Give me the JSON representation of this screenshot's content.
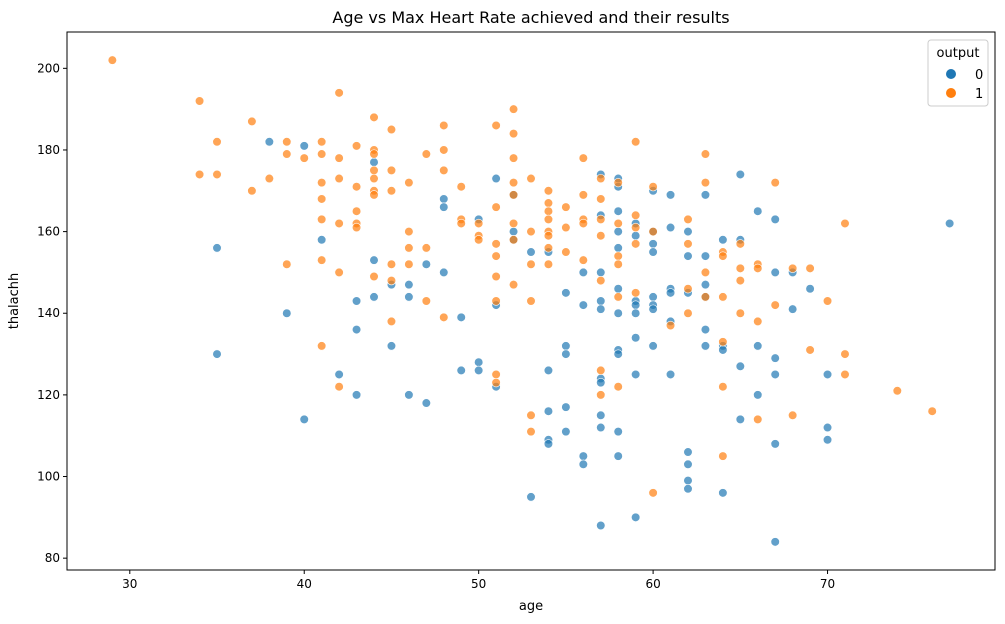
{
  "chart_data": {
    "type": "scatter",
    "title": "Age vs Max Heart Rate achieved and their results",
    "xlabel": "age",
    "ylabel": "thalachh",
    "xlim": [
      26.4,
      79.6
    ],
    "ylim": [
      77.1,
      208.9
    ],
    "xticks": [
      30,
      40,
      50,
      60,
      70
    ],
    "yticks": [
      80,
      100,
      120,
      140,
      160,
      180,
      200
    ],
    "grid": false,
    "legend": {
      "title": "output",
      "position": "top-right"
    },
    "colors": {
      "0": "#1f77b4",
      "1": "#ff7f0e"
    },
    "series": [
      {
        "name": "0",
        "points": [
          [
            35,
            156
          ],
          [
            35,
            130
          ],
          [
            38,
            182
          ],
          [
            39,
            140
          ],
          [
            40,
            181
          ],
          [
            40,
            114
          ],
          [
            41,
            158
          ],
          [
            42,
            125
          ],
          [
            43,
            143
          ],
          [
            43,
            136
          ],
          [
            43,
            120
          ],
          [
            44,
            177
          ],
          [
            44,
            153
          ],
          [
            44,
            144
          ],
          [
            45,
            147
          ],
          [
            45,
            132
          ],
          [
            46,
            147
          ],
          [
            46,
            144
          ],
          [
            46,
            120
          ],
          [
            47,
            152
          ],
          [
            47,
            118
          ],
          [
            48,
            168
          ],
          [
            48,
            166
          ],
          [
            48,
            150
          ],
          [
            49,
            139
          ],
          [
            49,
            126
          ],
          [
            50,
            163
          ],
          [
            50,
            128
          ],
          [
            50,
            126
          ],
          [
            51,
            142
          ],
          [
            51,
            122
          ],
          [
            51,
            173
          ],
          [
            52,
            169
          ],
          [
            52,
            160
          ],
          [
            52,
            158
          ],
          [
            53,
            155
          ],
          [
            53,
            95
          ],
          [
            54,
            155
          ],
          [
            54,
            126
          ],
          [
            54,
            116
          ],
          [
            54,
            109
          ],
          [
            54,
            108
          ],
          [
            55,
            145
          ],
          [
            55,
            132
          ],
          [
            55,
            130
          ],
          [
            55,
            117
          ],
          [
            55,
            111
          ],
          [
            56,
            150
          ],
          [
            56,
            142
          ],
          [
            56,
            105
          ],
          [
            56,
            103
          ],
          [
            57,
            174
          ],
          [
            57,
            164
          ],
          [
            57,
            150
          ],
          [
            57,
            143
          ],
          [
            57,
            141
          ],
          [
            57,
            124
          ],
          [
            57,
            123
          ],
          [
            57,
            115
          ],
          [
            57,
            112
          ],
          [
            57,
            88
          ],
          [
            58,
            173
          ],
          [
            58,
            171
          ],
          [
            58,
            165
          ],
          [
            58,
            160
          ],
          [
            58,
            156
          ],
          [
            58,
            146
          ],
          [
            58,
            140
          ],
          [
            58,
            131
          ],
          [
            58,
            130
          ],
          [
            58,
            111
          ],
          [
            58,
            105
          ],
          [
            59,
            162
          ],
          [
            59,
            159
          ],
          [
            59,
            143
          ],
          [
            59,
            142
          ],
          [
            59,
            140
          ],
          [
            59,
            134
          ],
          [
            59,
            125
          ],
          [
            59,
            90
          ],
          [
            60,
            170
          ],
          [
            60,
            160
          ],
          [
            60,
            157
          ],
          [
            60,
            155
          ],
          [
            60,
            144
          ],
          [
            60,
            142
          ],
          [
            60,
            141
          ],
          [
            60,
            132
          ],
          [
            61,
            169
          ],
          [
            61,
            161
          ],
          [
            61,
            146
          ],
          [
            61,
            145
          ],
          [
            61,
            138
          ],
          [
            61,
            125
          ],
          [
            62,
            160
          ],
          [
            62,
            154
          ],
          [
            62,
            145
          ],
          [
            62,
            106
          ],
          [
            62,
            103
          ],
          [
            62,
            99
          ],
          [
            62,
            97
          ],
          [
            63,
            169
          ],
          [
            63,
            154
          ],
          [
            63,
            147
          ],
          [
            63,
            144
          ],
          [
            63,
            136
          ],
          [
            63,
            132
          ],
          [
            64,
            158
          ],
          [
            64,
            132
          ],
          [
            64,
            131
          ],
          [
            64,
            96
          ],
          [
            65,
            174
          ],
          [
            65,
            158
          ],
          [
            65,
            127
          ],
          [
            65,
            114
          ],
          [
            66,
            165
          ],
          [
            66,
            132
          ],
          [
            66,
            120
          ],
          [
            67,
            163
          ],
          [
            67,
            150
          ],
          [
            67,
            129
          ],
          [
            67,
            125
          ],
          [
            67,
            108
          ],
          [
            67,
            84
          ],
          [
            68,
            150
          ],
          [
            68,
            141
          ],
          [
            69,
            146
          ],
          [
            70,
            125
          ],
          [
            70,
            112
          ],
          [
            70,
            109
          ],
          [
            77,
            162
          ]
        ]
      },
      {
        "name": "1",
        "points": [
          [
            29,
            202
          ],
          [
            34,
            192
          ],
          [
            34,
            174
          ],
          [
            35,
            182
          ],
          [
            35,
            174
          ],
          [
            37,
            187
          ],
          [
            37,
            170
          ],
          [
            38,
            173
          ],
          [
            39,
            182
          ],
          [
            39,
            179
          ],
          [
            39,
            152
          ],
          [
            40,
            178
          ],
          [
            41,
            182
          ],
          [
            41,
            179
          ],
          [
            41,
            172
          ],
          [
            41,
            168
          ],
          [
            41,
            163
          ],
          [
            41,
            153
          ],
          [
            41,
            132
          ],
          [
            42,
            194
          ],
          [
            42,
            178
          ],
          [
            42,
            173
          ],
          [
            42,
            162
          ],
          [
            42,
            150
          ],
          [
            42,
            122
          ],
          [
            43,
            181
          ],
          [
            43,
            171
          ],
          [
            43,
            165
          ],
          [
            43,
            162
          ],
          [
            43,
            161
          ],
          [
            44,
            188
          ],
          [
            44,
            180
          ],
          [
            44,
            179
          ],
          [
            44,
            175
          ],
          [
            44,
            173
          ],
          [
            44,
            170
          ],
          [
            44,
            169
          ],
          [
            44,
            149
          ],
          [
            45,
            185
          ],
          [
            45,
            175
          ],
          [
            45,
            170
          ],
          [
            45,
            152
          ],
          [
            45,
            148
          ],
          [
            45,
            138
          ],
          [
            46,
            172
          ],
          [
            46,
            160
          ],
          [
            46,
            156
          ],
          [
            46,
            152
          ],
          [
            47,
            179
          ],
          [
            47,
            156
          ],
          [
            47,
            143
          ],
          [
            48,
            186
          ],
          [
            48,
            180
          ],
          [
            48,
            175
          ],
          [
            48,
            139
          ],
          [
            49,
            171
          ],
          [
            49,
            163
          ],
          [
            49,
            162
          ],
          [
            50,
            162
          ],
          [
            50,
            159
          ],
          [
            50,
            158
          ],
          [
            51,
            186
          ],
          [
            51,
            166
          ],
          [
            51,
            157
          ],
          [
            51,
            154
          ],
          [
            51,
            149
          ],
          [
            51,
            143
          ],
          [
            51,
            125
          ],
          [
            51,
            123
          ],
          [
            52,
            190
          ],
          [
            52,
            184
          ],
          [
            52,
            178
          ],
          [
            52,
            172
          ],
          [
            52,
            169
          ],
          [
            52,
            162
          ],
          [
            52,
            158
          ],
          [
            52,
            147
          ],
          [
            53,
            173
          ],
          [
            53,
            160
          ],
          [
            53,
            152
          ],
          [
            53,
            143
          ],
          [
            53,
            115
          ],
          [
            53,
            111
          ],
          [
            54,
            170
          ],
          [
            54,
            167
          ],
          [
            54,
            165
          ],
          [
            54,
            163
          ],
          [
            54,
            160
          ],
          [
            54,
            159
          ],
          [
            54,
            156
          ],
          [
            54,
            152
          ],
          [
            55,
            166
          ],
          [
            55,
            161
          ],
          [
            55,
            155
          ],
          [
            56,
            178
          ],
          [
            56,
            169
          ],
          [
            56,
            163
          ],
          [
            56,
            162
          ],
          [
            56,
            153
          ],
          [
            57,
            173
          ],
          [
            57,
            168
          ],
          [
            57,
            163
          ],
          [
            57,
            159
          ],
          [
            57,
            148
          ],
          [
            57,
            126
          ],
          [
            57,
            120
          ],
          [
            58,
            172
          ],
          [
            58,
            162
          ],
          [
            58,
            154
          ],
          [
            58,
            152
          ],
          [
            58,
            144
          ],
          [
            58,
            122
          ],
          [
            59,
            182
          ],
          [
            59,
            164
          ],
          [
            59,
            161
          ],
          [
            59,
            157
          ],
          [
            59,
            145
          ],
          [
            60,
            171
          ],
          [
            60,
            160
          ],
          [
            60,
            96
          ],
          [
            61,
            137
          ],
          [
            62,
            163
          ],
          [
            62,
            157
          ],
          [
            62,
            146
          ],
          [
            62,
            140
          ],
          [
            63,
            179
          ],
          [
            63,
            172
          ],
          [
            63,
            150
          ],
          [
            63,
            144
          ],
          [
            64,
            155
          ],
          [
            64,
            154
          ],
          [
            64,
            144
          ],
          [
            64,
            133
          ],
          [
            64,
            122
          ],
          [
            64,
            105
          ],
          [
            65,
            157
          ],
          [
            65,
            151
          ],
          [
            65,
            148
          ],
          [
            65,
            140
          ],
          [
            66,
            152
          ],
          [
            66,
            151
          ],
          [
            66,
            138
          ],
          [
            66,
            114
          ],
          [
            67,
            172
          ],
          [
            67,
            142
          ],
          [
            68,
            151
          ],
          [
            68,
            115
          ],
          [
            69,
            151
          ],
          [
            69,
            131
          ],
          [
            70,
            143
          ],
          [
            71,
            162
          ],
          [
            71,
            130
          ],
          [
            71,
            125
          ],
          [
            74,
            121
          ],
          [
            76,
            116
          ]
        ]
      }
    ]
  }
}
